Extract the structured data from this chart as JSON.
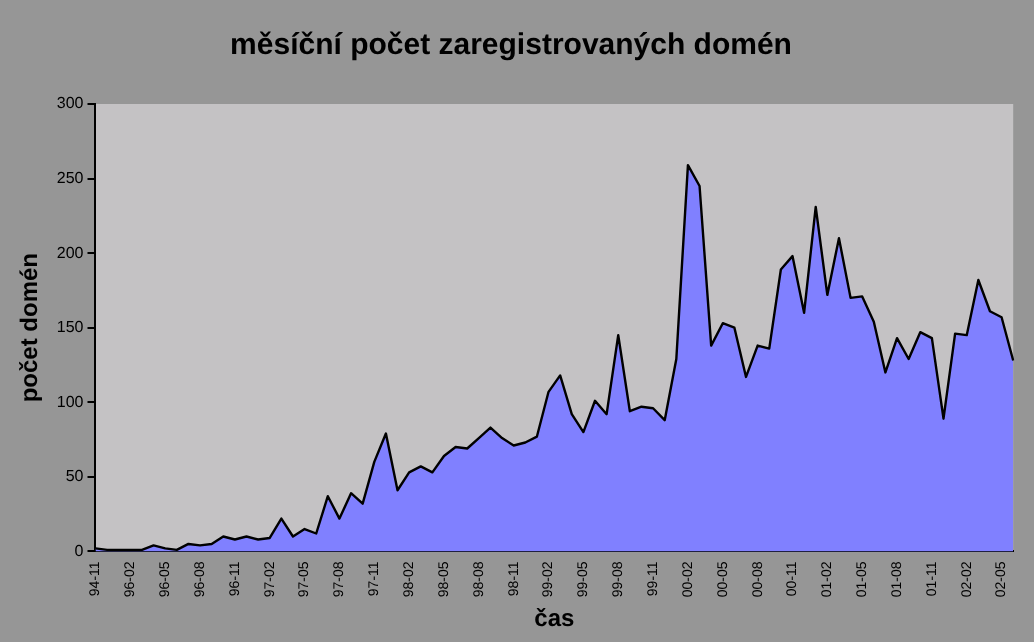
{
  "chart_data": {
    "type": "area",
    "title": "měsíční počet zaregistrovaných domén",
    "xlabel": "čas",
    "ylabel": "počet domén",
    "categories": [
      "94-11",
      null,
      null,
      "96-02",
      null,
      null,
      "96-05",
      null,
      null,
      "96-08",
      null,
      null,
      "96-11",
      null,
      null,
      "97-02",
      null,
      null,
      "97-05",
      null,
      null,
      "97-08",
      null,
      null,
      "97-11",
      null,
      null,
      "98-02",
      null,
      null,
      "98-05",
      null,
      null,
      "98-08",
      null,
      null,
      "98-11",
      null,
      null,
      "99-02",
      null,
      null,
      "99-05",
      null,
      null,
      "99-08",
      null,
      null,
      "99-11",
      null,
      null,
      "00-02",
      null,
      null,
      "00-05",
      null,
      null,
      "00-08",
      null,
      null,
      "00-11",
      null,
      null,
      "01-02",
      null,
      null,
      "01-05",
      null,
      null,
      "01-08",
      null,
      null,
      "01-11",
      null,
      null,
      "02-02",
      null,
      null,
      "02-05",
      null
    ],
    "series": [
      {
        "color": "#8080ff",
        "values": [
          2,
          1,
          1,
          1,
          1,
          4,
          2,
          1,
          5,
          4,
          5,
          10,
          8,
          10,
          8,
          9,
          22,
          10,
          15,
          12,
          37,
          22,
          39,
          32,
          60,
          79,
          41,
          53,
          57,
          53,
          64,
          70,
          69,
          76,
          83,
          76,
          71,
          73,
          77,
          107,
          118,
          92,
          80,
          101,
          92,
          145,
          94,
          97,
          96,
          88,
          129,
          259,
          245,
          138,
          153,
          150,
          117,
          138,
          136,
          189,
          198,
          160,
          231,
          172,
          210,
          170,
          171,
          154,
          120,
          143,
          129,
          147,
          143,
          89,
          146,
          145,
          182,
          161,
          157,
          128
        ]
      }
    ],
    "ylim": [
      0,
      300
    ],
    "yticks": [
      0,
      50,
      100,
      150,
      200,
      250,
      300
    ],
    "grid": false,
    "legend": false
  }
}
